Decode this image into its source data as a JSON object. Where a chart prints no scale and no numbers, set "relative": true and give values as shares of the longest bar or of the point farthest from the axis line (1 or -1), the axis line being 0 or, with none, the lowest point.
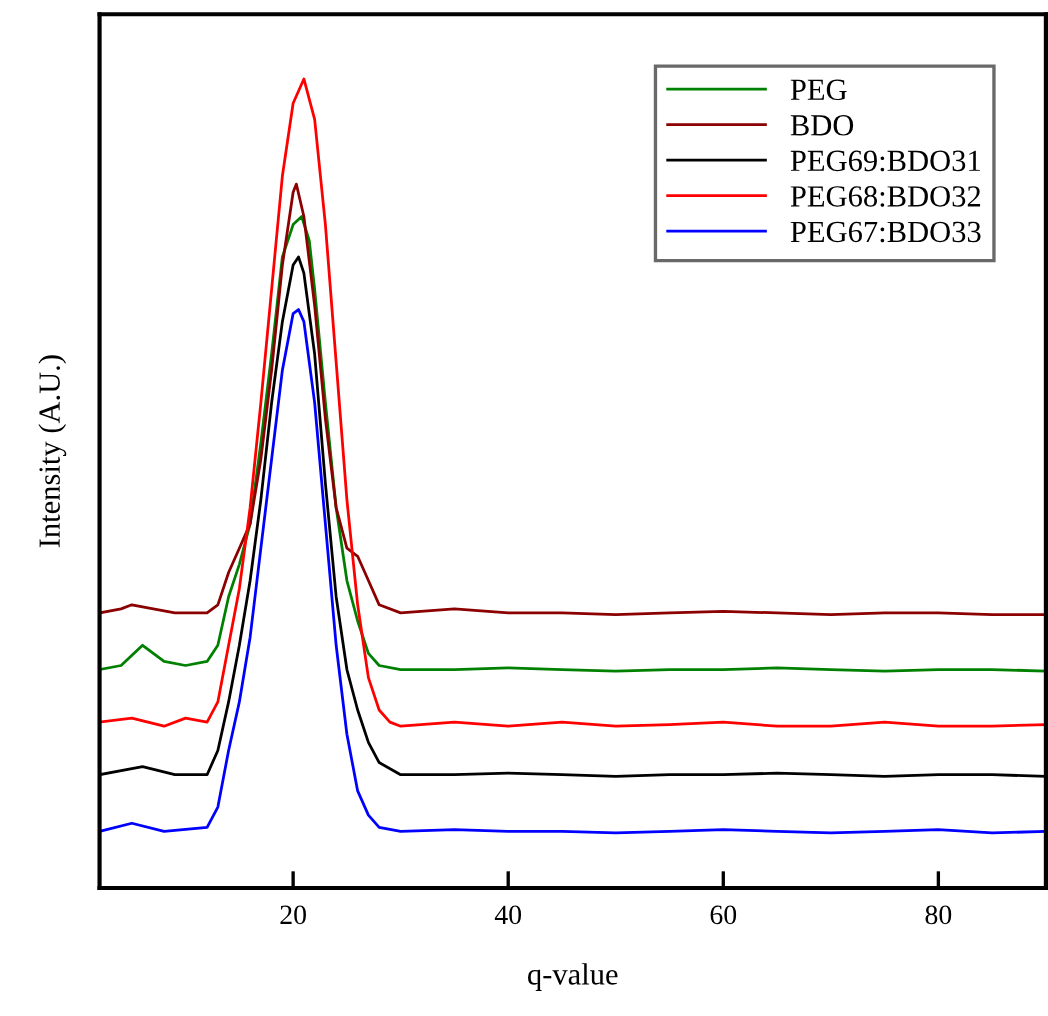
{
  "chart_data": {
    "type": "line",
    "xlabel": "q-value",
    "ylabel": "Intensity (A.U.)",
    "relative": true,
    "xlim": [
      2,
      90
    ],
    "xticks": [
      20,
      40,
      60,
      80
    ],
    "legend": "top right",
    "grid": false,
    "marker": "none",
    "line_style": "solid",
    "series": [
      {
        "name": "PEG",
        "color": "#008000",
        "x": [
          2,
          4,
          6,
          8,
          10,
          12,
          13,
          14,
          15,
          16,
          17,
          18,
          19,
          20,
          20.8,
          21.5,
          22,
          23,
          24,
          25,
          26,
          27,
          28,
          30,
          35,
          40,
          45,
          50,
          55,
          60,
          65,
          70,
          75,
          80,
          85,
          90
        ],
        "values": [
          0.27,
          0.275,
          0.3,
          0.28,
          0.275,
          0.28,
          0.3,
          0.36,
          0.4,
          0.45,
          0.55,
          0.66,
          0.78,
          0.82,
          0.83,
          0.8,
          0.74,
          0.6,
          0.47,
          0.38,
          0.33,
          0.29,
          0.275,
          0.27,
          0.27,
          0.272,
          0.27,
          0.268,
          0.27,
          0.27,
          0.272,
          0.27,
          0.268,
          0.27,
          0.27,
          0.268
        ]
      },
      {
        "name": "BDO",
        "color": "#8b0000",
        "x": [
          2,
          4,
          5,
          7,
          9,
          12,
          13,
          14,
          15,
          16,
          17,
          18,
          19,
          20,
          20.3,
          21,
          22,
          23,
          24,
          25,
          26,
          27,
          28,
          30,
          35,
          40,
          45,
          50,
          55,
          60,
          65,
          70,
          75,
          80,
          85,
          90
        ],
        "values": [
          0.34,
          0.345,
          0.35,
          0.345,
          0.34,
          0.34,
          0.35,
          0.39,
          0.42,
          0.45,
          0.53,
          0.64,
          0.77,
          0.86,
          0.87,
          0.83,
          0.72,
          0.58,
          0.47,
          0.42,
          0.41,
          0.38,
          0.35,
          0.34,
          0.345,
          0.34,
          0.34,
          0.338,
          0.34,
          0.342,
          0.34,
          0.338,
          0.34,
          0.34,
          0.338,
          0.338
        ]
      },
      {
        "name": "PEG69:BDO31",
        "color": "#000000",
        "x": [
          2,
          6,
          9,
          12,
          13,
          14,
          15,
          16,
          17,
          18,
          19,
          20,
          20.5,
          21,
          22,
          23,
          24,
          25,
          26,
          27,
          28,
          30,
          35,
          40,
          45,
          50,
          55,
          60,
          65,
          70,
          75,
          80,
          85,
          90
        ],
        "values": [
          0.14,
          0.15,
          0.14,
          0.14,
          0.17,
          0.23,
          0.3,
          0.38,
          0.48,
          0.6,
          0.7,
          0.77,
          0.78,
          0.76,
          0.66,
          0.5,
          0.36,
          0.27,
          0.22,
          0.18,
          0.155,
          0.14,
          0.14,
          0.142,
          0.14,
          0.138,
          0.14,
          0.14,
          0.142,
          0.14,
          0.138,
          0.14,
          0.14,
          0.138
        ]
      },
      {
        "name": "PEG68:BDO32",
        "color": "#ff0000",
        "x": [
          2,
          5,
          8,
          10,
          12,
          13,
          14,
          15,
          16,
          17,
          18,
          19,
          20,
          21,
          22,
          23,
          24,
          25,
          26,
          27,
          28,
          29,
          30,
          35,
          40,
          45,
          50,
          55,
          60,
          65,
          70,
          75,
          80,
          85,
          90
        ],
        "values": [
          0.205,
          0.21,
          0.2,
          0.21,
          0.205,
          0.23,
          0.3,
          0.37,
          0.47,
          0.6,
          0.74,
          0.88,
          0.97,
          1.0,
          0.95,
          0.82,
          0.65,
          0.48,
          0.35,
          0.26,
          0.22,
          0.205,
          0.2,
          0.205,
          0.2,
          0.205,
          0.2,
          0.202,
          0.205,
          0.2,
          0.2,
          0.205,
          0.2,
          0.2,
          0.202
        ]
      },
      {
        "name": "PEG67:BDO33",
        "color": "#0000ff",
        "x": [
          2,
          5,
          8,
          12,
          13,
          14,
          15,
          16,
          17,
          18,
          19,
          20,
          20.5,
          21,
          22,
          23,
          24,
          25,
          26,
          27,
          28,
          30,
          35,
          40,
          45,
          50,
          55,
          60,
          65,
          70,
          75,
          80,
          85,
          90
        ],
        "values": [
          0.07,
          0.08,
          0.07,
          0.075,
          0.1,
          0.17,
          0.23,
          0.31,
          0.42,
          0.53,
          0.64,
          0.71,
          0.715,
          0.7,
          0.6,
          0.45,
          0.3,
          0.19,
          0.12,
          0.09,
          0.075,
          0.07,
          0.072,
          0.07,
          0.07,
          0.068,
          0.07,
          0.072,
          0.07,
          0.068,
          0.07,
          0.072,
          0.068,
          0.07
        ]
      }
    ]
  }
}
